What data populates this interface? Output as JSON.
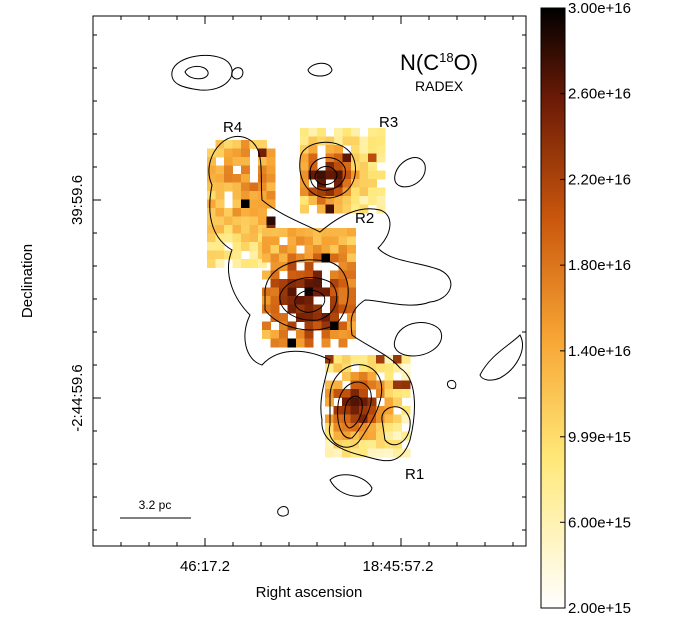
{
  "chart_data": {
    "type": "image-map",
    "title": {
      "prefix": "N(C",
      "sup": "18",
      "suffix": "O)"
    },
    "subtitle": "RADEX",
    "xlabel": "Right ascension",
    "ylabel": "Declination",
    "x_tick_labels": [
      "46:17.2",
      "18:45:57.2"
    ],
    "y_tick_labels": [
      "39:59.6",
      "-2:44:59.6"
    ],
    "annotations": [
      "R1",
      "R2",
      "R3",
      "R4"
    ],
    "scale_bar": "3.2 pc",
    "colorbar": {
      "lim": [
        2000000000000000.0,
        3e+16
      ],
      "ticks": [
        {
          "value": 3e+16,
          "label": "3.00e+16"
        },
        {
          "value": 2.6e+16,
          "label": "2.60e+16"
        },
        {
          "value": 2.2e+16,
          "label": "2.20e+16"
        },
        {
          "value": 1.8e+16,
          "label": "1.80e+16"
        },
        {
          "value": 1.4e+16,
          "label": "1.40e+16"
        },
        {
          "value": 9990000000000000.0,
          "label": "9.99e+15"
        },
        {
          "value": 6000000000000000.0,
          "label": "6.00e+15"
        },
        {
          "value": 2000000000000000.0,
          "label": "2.00e+15"
        }
      ]
    }
  }
}
